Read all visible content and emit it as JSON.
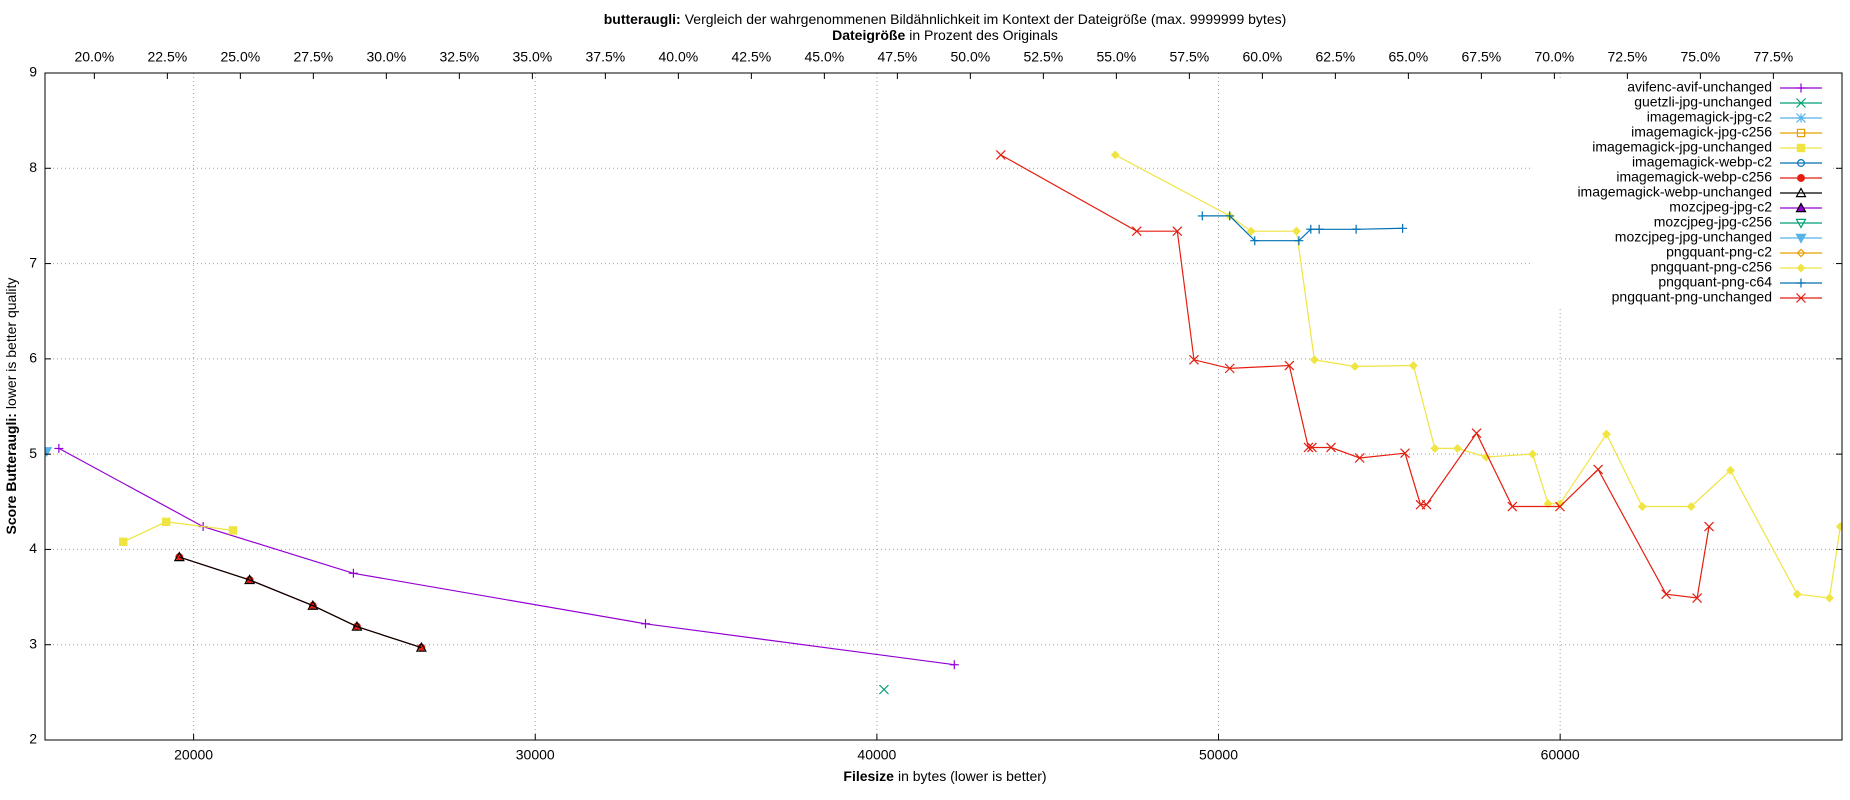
{
  "chart_data": {
    "type": "line",
    "title_bold": "butteraugli:",
    "title": "Vergleich der wahrgenommenen Bildähnlichkeit im Kontext der Dateigröße (max. 9999999 bytes)",
    "x2label_bold": "Dateigröße",
    "x2label": "in Prozent des Originals",
    "xlabel_bold": "Filesize",
    "xlabel": "in bytes (lower is better)",
    "ylabel_bold": "Score Butteraugli:",
    "ylabel": "lower is better quality",
    "xlim": [
      15650,
      68250
    ],
    "xticks": [
      20000,
      30000,
      40000,
      50000,
      60000
    ],
    "x2lim": [
      18.31,
      79.85
    ],
    "x2ticks": [
      {
        "value": 20,
        "label": "20.0%"
      },
      {
        "value": 22.5,
        "label": "22.5%"
      },
      {
        "value": 25,
        "label": "25.0%"
      },
      {
        "value": 27.5,
        "label": "27.5%"
      },
      {
        "value": 30,
        "label": "30.0%"
      },
      {
        "value": 32.5,
        "label": "32.5%"
      },
      {
        "value": 35,
        "label": "35.0%"
      },
      {
        "value": 37.5,
        "label": "37.5%"
      },
      {
        "value": 40,
        "label": "40.0%"
      },
      {
        "value": 42.5,
        "label": "42.5%"
      },
      {
        "value": 45,
        "label": "45.0%"
      },
      {
        "value": 47.5,
        "label": "47.5%"
      },
      {
        "value": 50,
        "label": "50.0%"
      },
      {
        "value": 52.5,
        "label": "52.5%"
      },
      {
        "value": 55,
        "label": "55.0%"
      },
      {
        "value": 57.5,
        "label": "57.5%"
      },
      {
        "value": 60,
        "label": "60.0%"
      },
      {
        "value": 62.5,
        "label": "62.5%"
      },
      {
        "value": 65,
        "label": "65.0%"
      },
      {
        "value": 67.5,
        "label": "67.5%"
      },
      {
        "value": 70,
        "label": "70.0%"
      },
      {
        "value": 72.5,
        "label": "72.5%"
      },
      {
        "value": 75,
        "label": "75.0%"
      },
      {
        "value": 77.5,
        "label": "77.5%"
      }
    ],
    "ylim": [
      2,
      9
    ],
    "yticks": [
      2,
      3,
      4,
      5,
      6,
      7,
      8,
      9
    ],
    "grid": true,
    "legend": "top-right",
    "series": [
      {
        "name": "avifenc-avif-unchanged",
        "color": "#9400d3",
        "marker": "plus",
        "x": [
          16056,
          20279,
          24677,
          33227,
          42266
        ],
        "values": [
          5.06,
          4.24,
          3.75,
          3.22,
          2.79
        ]
      },
      {
        "name": "guetzli-jpg-unchanged",
        "color": "#009e73",
        "marker": "cross",
        "x": [
          40207
        ],
        "values": [
          2.53
        ]
      },
      {
        "name": "imagemagick-jpg-c2",
        "color": "#56b4e9",
        "marker": "star",
        "x": [],
        "values": []
      },
      {
        "name": "imagemagick-jpg-c256",
        "color": "#e69f00",
        "marker": "square-open",
        "x": [],
        "values": []
      },
      {
        "name": "imagemagick-jpg-unchanged",
        "color": "#f0e442",
        "marker": "square",
        "x": [
          17941,
          19197,
          21152
        ],
        "values": [
          4.08,
          4.29,
          4.2
        ]
      },
      {
        "name": "imagemagick-webp-c2",
        "color": "#0072b2",
        "marker": "circle-open",
        "x": [],
        "values": []
      },
      {
        "name": "imagemagick-webp-c256",
        "color": "#e51e10",
        "marker": "circle",
        "x": [
          19581,
          21640,
          23490,
          24781,
          26666
        ],
        "values": [
          3.92,
          3.68,
          3.41,
          3.19,
          2.97
        ]
      },
      {
        "name": "imagemagick-webp-unchanged",
        "color": "#000000",
        "marker": "triangle-open",
        "x": [
          19581,
          21640,
          23490,
          24781,
          26666
        ],
        "values": [
          3.92,
          3.68,
          3.41,
          3.19,
          2.97
        ]
      },
      {
        "name": "mozcjpeg-jpg-c2",
        "color": "#9400d3",
        "marker": "triangle",
        "x": [],
        "values": []
      },
      {
        "name": "mozcjpeg-jpg-c256",
        "color": "#009e73",
        "marker": "triangle-down-open",
        "x": [],
        "values": []
      },
      {
        "name": "mozcjpeg-jpg-unchanged",
        "color": "#56b4e9",
        "marker": "triangle-down",
        "x": [
          15700
        ],
        "values": [
          5.03
        ]
      },
      {
        "name": "pngquant-png-c2",
        "color": "#e69f00",
        "marker": "diamond-open",
        "x": [],
        "values": []
      },
      {
        "name": "pngquant-png-c256",
        "color": "#f0e442",
        "marker": "diamond",
        "x": [
          46978,
          50328,
          50956,
          52282,
          52806,
          53993,
          55703,
          56331,
          56994,
          57832,
          59193,
          59646,
          59995,
          61356,
          62403,
          63834,
          64986,
          66940,
          67883,
          68200
        ],
        "values": [
          8.14,
          7.5,
          7.34,
          7.34,
          5.99,
          5.92,
          5.93,
          5.06,
          5.06,
          4.97,
          5.0,
          4.48,
          4.48,
          5.21,
          4.45,
          4.45,
          4.83,
          3.53,
          3.49,
          4.24
        ]
      },
      {
        "name": "pngquant-png-c64",
        "color": "#0072b2",
        "marker": "plus",
        "x": [
          49525,
          50328,
          51061,
          52352,
          52701,
          52946,
          54028,
          55389
        ],
        "values": [
          7.5,
          7.5,
          7.24,
          7.24,
          7.36,
          7.36,
          7.36,
          7.37
        ]
      },
      {
        "name": "pngquant-png-unchanged",
        "color": "#e51e10",
        "marker": "cross",
        "x": [
          43627,
          47606,
          48793,
          49281,
          50328,
          52073,
          52632,
          52736,
          53294,
          54132,
          55459,
          55912,
          56087,
          57553,
          58600,
          59995,
          61112,
          63101,
          64009,
          64358
        ],
        "values": [
          8.14,
          7.34,
          7.34,
          5.99,
          5.9,
          5.93,
          5.07,
          5.07,
          5.07,
          4.96,
          5.01,
          4.47,
          4.47,
          5.22,
          4.45,
          4.45,
          4.84,
          3.53,
          3.49,
          4.24
        ]
      }
    ]
  }
}
